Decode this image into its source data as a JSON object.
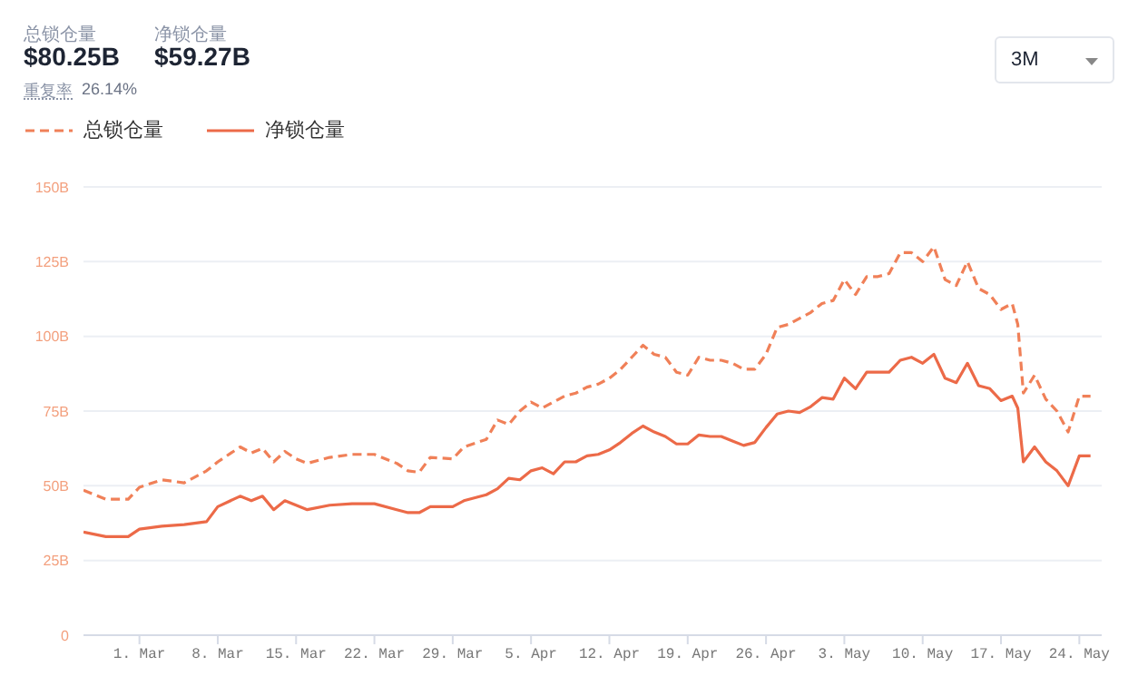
{
  "chart_data": {
    "type": "line",
    "annotations": [
      "总锁仓量",
      "$80.25B",
      "净锁仓量",
      "$59.27B",
      "重复率",
      "26.14%",
      "3M"
    ],
    "x": [
      "--02-24",
      "--02-26",
      "--02-28",
      "--03-01",
      "--03-03",
      "--03-05",
      "--03-07",
      "--03-08",
      "--03-10",
      "--03-11",
      "--03-12",
      "--03-13",
      "--03-14",
      "--03-15",
      "--03-16",
      "--03-18",
      "--03-20",
      "--03-22",
      "--03-24",
      "--03-25",
      "--03-26",
      "--03-27",
      "--03-29",
      "--03-30",
      "--04-01",
      "--04-02",
      "--04-03",
      "--04-04",
      "--04-05",
      "--04-06",
      "--04-07",
      "--04-08",
      "--04-09",
      "--04-10",
      "--04-11",
      "--04-12",
      "--04-13",
      "--04-14",
      "--04-15",
      "--04-16",
      "--04-17",
      "--04-18",
      "--04-19",
      "--04-20",
      "--04-21",
      "--04-22",
      "--04-23",
      "--04-24",
      "--04-25",
      "--04-26",
      "--04-27",
      "--04-28",
      "--04-29",
      "--04-30",
      "--05-01",
      "--05-02",
      "--05-03",
      "--05-04",
      "--05-05",
      "--05-06",
      "--05-07",
      "--05-08",
      "--05-09",
      "--05-10",
      "--05-11",
      "--05-12",
      "--05-13",
      "--05-14",
      "--05-15",
      "--05-16",
      "--05-17",
      "--05-18",
      "--05-18T12:00",
      "--05-19",
      "--05-20",
      "--05-21",
      "--05-22",
      "--05-23",
      "--05-24",
      "--05-25"
    ],
    "series": [
      {
        "name": "总锁仓量",
        "color": "#f08058",
        "line_style": "dashed",
        "values": [
          48.5,
          45.5,
          45.5,
          49.5,
          52,
          51,
          55,
          58,
          63,
          61,
          62.5,
          58,
          61.5,
          59,
          57.5,
          59.5,
          60.5,
          60.5,
          57.5,
          55,
          54.5,
          59.5,
          59,
          63,
          65.5,
          72,
          70.5,
          75,
          78,
          76,
          78,
          80,
          81,
          83,
          84,
          86,
          89,
          93,
          97,
          94,
          93,
          88,
          87,
          93,
          92,
          92,
          91,
          89,
          89,
          94,
          103,
          104,
          106,
          108,
          111,
          112,
          119,
          114,
          120,
          120,
          121,
          128,
          128,
          125,
          130,
          119,
          117,
          125,
          116,
          114,
          109,
          111,
          104,
          81,
          87,
          79,
          75,
          68,
          80,
          80
        ]
      },
      {
        "name": "净锁仓量",
        "color": "#ec6a48",
        "line_style": "solid",
        "values": [
          34.5,
          33,
          33,
          35.5,
          36.5,
          37,
          38,
          43,
          46.5,
          45,
          46.5,
          42,
          45,
          43.5,
          42,
          43.5,
          44,
          44,
          42,
          41,
          41,
          43,
          43,
          45,
          47,
          49,
          52.5,
          52,
          55,
          56,
          54,
          58,
          58,
          60,
          60.5,
          62,
          64.5,
          67.5,
          70,
          68,
          66.5,
          64,
          64,
          67,
          66.5,
          66.5,
          65,
          63.5,
          64.5,
          69.5,
          74,
          75,
          74.5,
          76.5,
          79.5,
          79,
          86,
          82.5,
          88,
          88,
          88,
          92,
          93,
          91,
          94,
          86,
          84.5,
          91,
          83.5,
          82.5,
          78.5,
          80,
          76,
          58,
          63,
          58,
          55,
          50,
          60,
          60
        ]
      }
    ],
    "xlim": [
      "--02-24",
      "--05-26"
    ],
    "xticks": [
      {
        "value": "--03-01",
        "label": "1. Mar"
      },
      {
        "value": "--03-08",
        "label": "8. Mar"
      },
      {
        "value": "--03-15",
        "label": "15. Mar"
      },
      {
        "value": "--03-22",
        "label": "22. Mar"
      },
      {
        "value": "--03-29",
        "label": "29. Mar"
      },
      {
        "value": "--04-05",
        "label": "5. Apr"
      },
      {
        "value": "--04-12",
        "label": "12. Apr"
      },
      {
        "value": "--04-19",
        "label": "19. Apr"
      },
      {
        "value": "--04-26",
        "label": "26. Apr"
      },
      {
        "value": "--05-03",
        "label": "3. May"
      },
      {
        "value": "--05-10",
        "label": "10. May"
      },
      {
        "value": "--05-17",
        "label": "17. May"
      },
      {
        "value": "--05-24",
        "label": "24. May"
      }
    ],
    "ylim": [
      0,
      150
    ],
    "yticks": [
      0,
      {
        "value": 25,
        "label": "25B"
      },
      {
        "value": 50,
        "label": "50B"
      },
      {
        "value": 75,
        "label": "75B"
      },
      {
        "value": 100,
        "label": "100B"
      },
      {
        "value": 125,
        "label": "125B"
      },
      {
        "value": 150,
        "label": "150B"
      }
    ],
    "grid": "y",
    "legend": "top left",
    "marker": "none"
  }
}
